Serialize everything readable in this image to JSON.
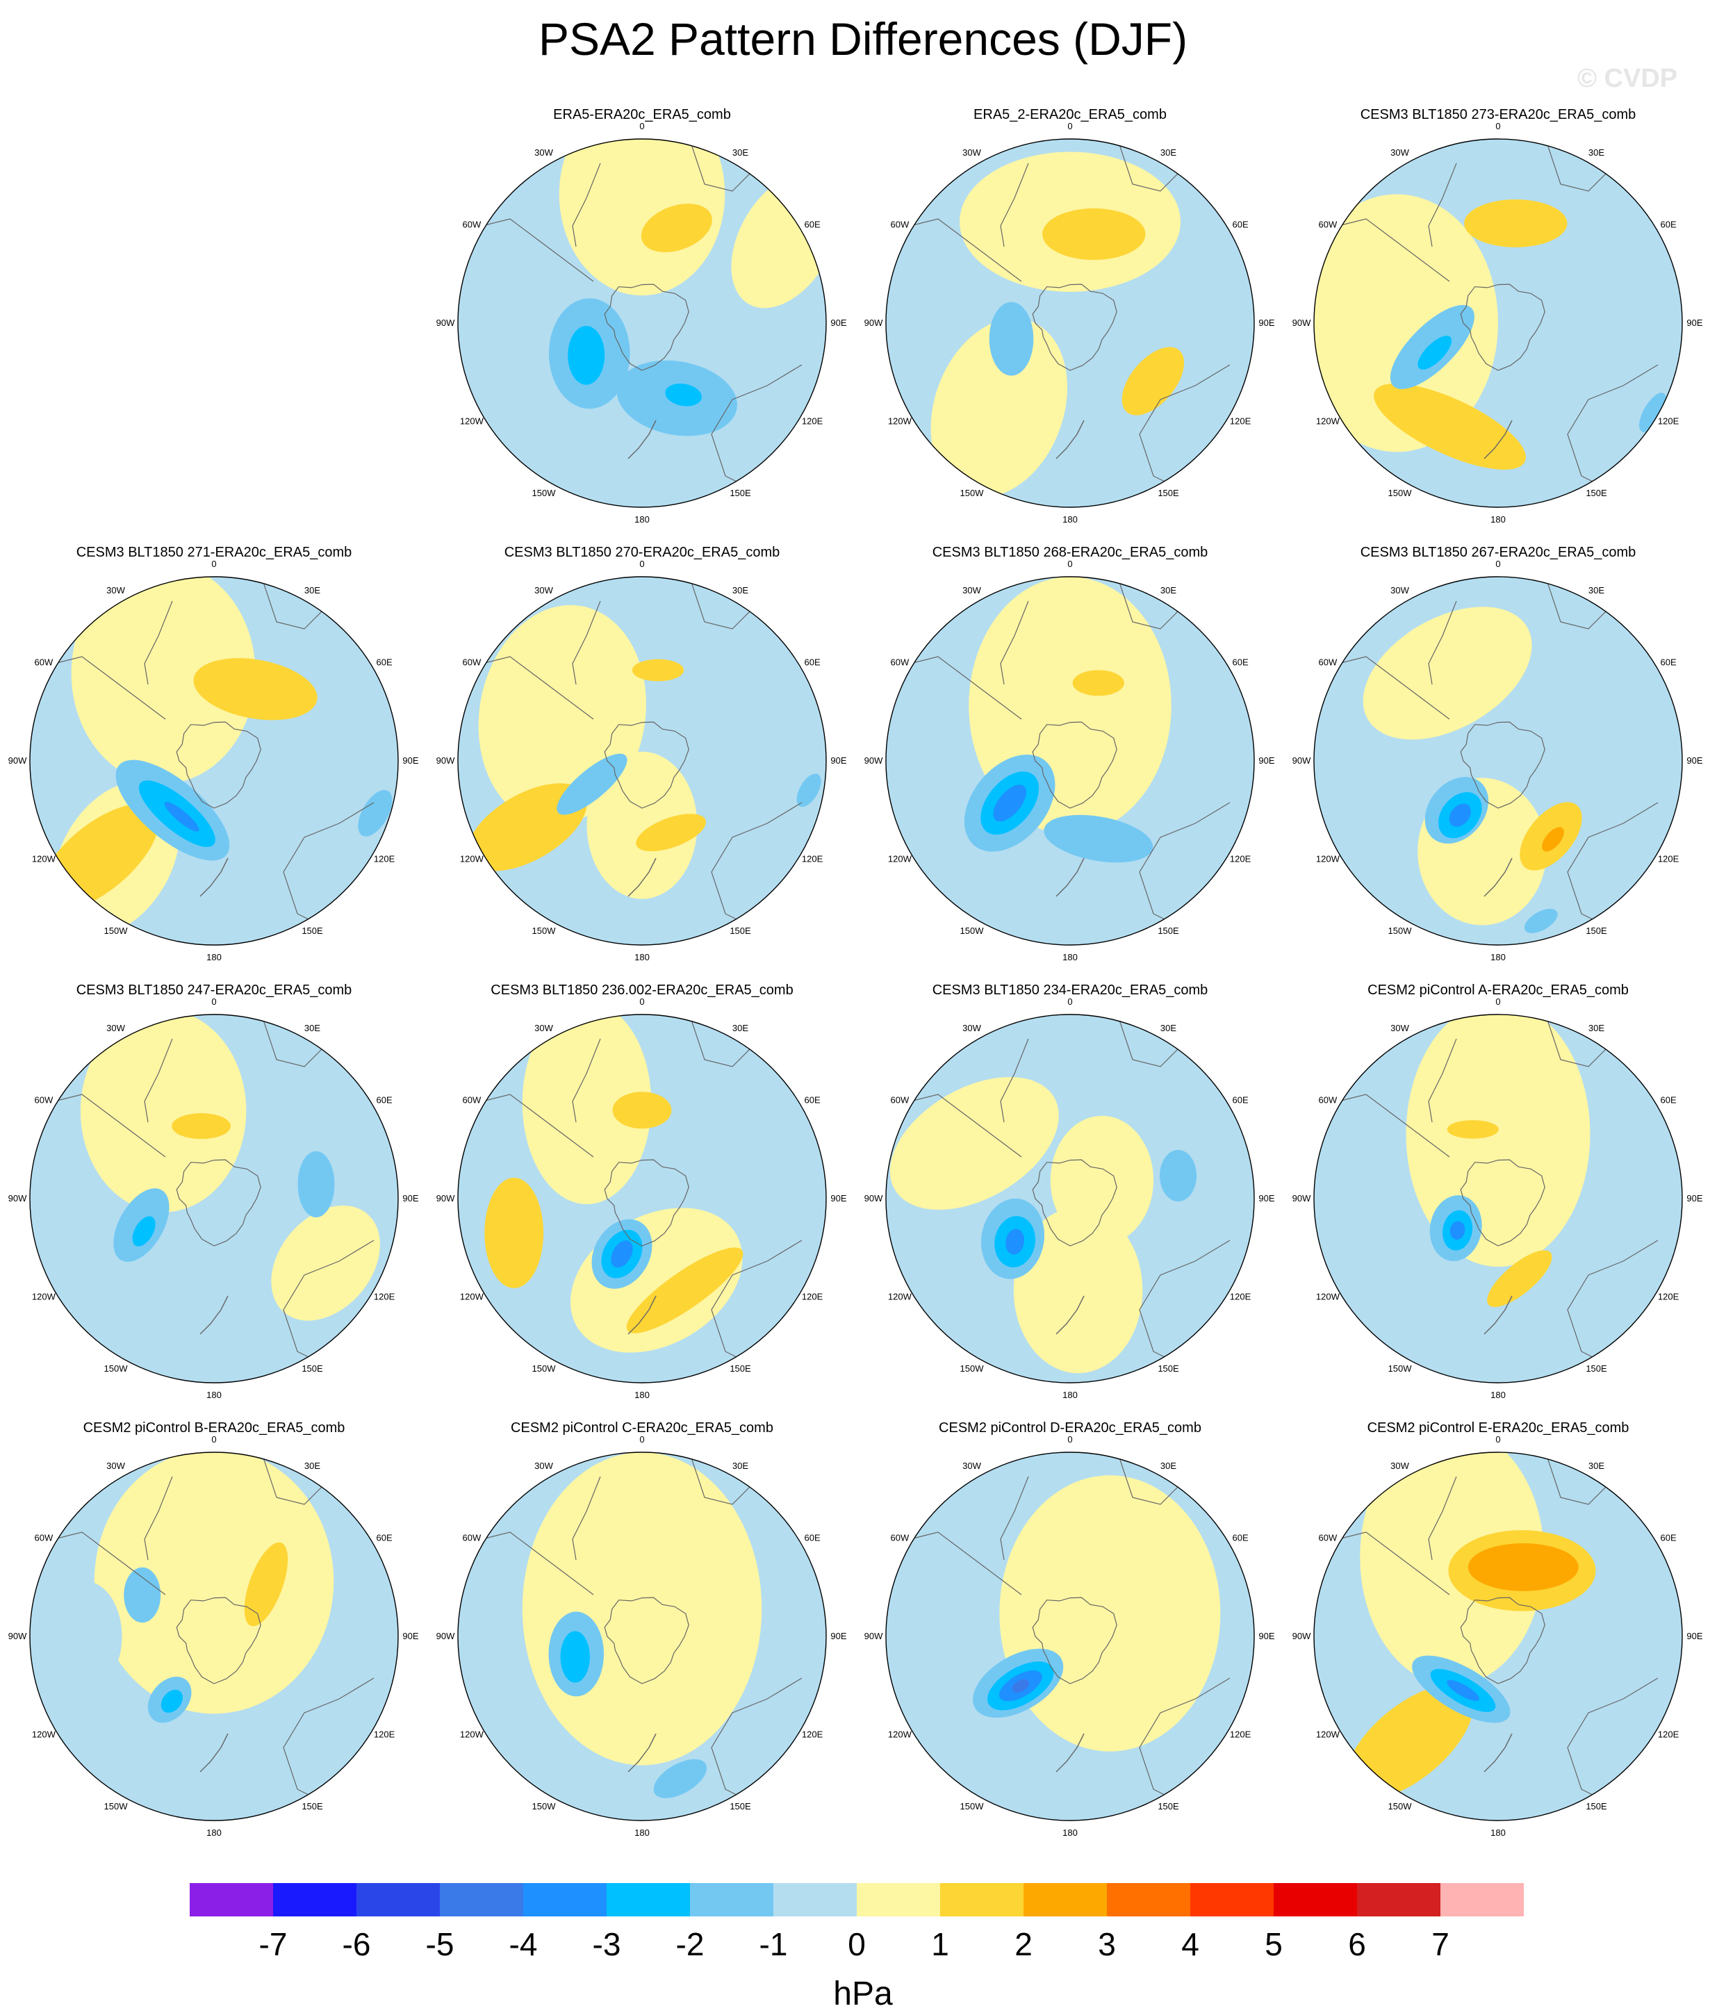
{
  "figure": {
    "title": "PSA2 Pattern Differences (DJF)",
    "watermark": "© CVDP"
  },
  "lon_labels": [
    "0",
    "30E",
    "60E",
    "90E",
    "120E",
    "150E",
    "180",
    "150W",
    "120W",
    "90W",
    "60W",
    "30W"
  ],
  "panels": [
    {
      "title": "ERA5-ERA20c_ERA5_comb",
      "row": 0,
      "col": 1,
      "base": "#b4ddf0",
      "features": [
        {
          "level": 1,
          "lon": 0,
          "r": 0.7,
          "a": 0.45,
          "b": 0.55,
          "rot": 0
        },
        {
          "level": 1,
          "lon": 60,
          "r": 0.9,
          "a": 0.25,
          "b": 0.4,
          "rot": 30
        },
        {
          "level": 2,
          "lon": 20,
          "r": 0.55,
          "a": 0.12,
          "b": 0.2,
          "rot": 70
        },
        {
          "level": -2,
          "lon": 240,
          "r": 0.33,
          "a": 0.22,
          "b": 0.3,
          "rot": 0
        },
        {
          "level": -3,
          "lon": 240,
          "r": 0.35,
          "a": 0.1,
          "b": 0.16,
          "rot": 0
        },
        {
          "level": -2,
          "lon": 155,
          "r": 0.45,
          "a": 0.2,
          "b": 0.33,
          "rot": 100
        },
        {
          "level": -3,
          "lon": 150,
          "r": 0.45,
          "a": 0.06,
          "b": 0.1,
          "rot": 100
        }
      ]
    },
    {
      "title": "ERA5_2-ERA20c_ERA5_comb",
      "row": 0,
      "col": 2,
      "base": "#b4ddf0",
      "features": [
        {
          "level": 1,
          "lon": 0,
          "r": 0.55,
          "a": 0.38,
          "b": 0.6,
          "rot": 90
        },
        {
          "level": 1,
          "lon": 220,
          "r": 0.6,
          "a": 0.35,
          "b": 0.5,
          "rot": 20
        },
        {
          "level": 2,
          "lon": 15,
          "r": 0.5,
          "a": 0.14,
          "b": 0.28,
          "rot": 90
        },
        {
          "level": 2,
          "lon": 125,
          "r": 0.55,
          "a": 0.12,
          "b": 0.22,
          "rot": 40
        },
        {
          "level": -2,
          "lon": 255,
          "r": 0.33,
          "a": 0.12,
          "b": 0.2,
          "rot": 0
        }
      ]
    },
    {
      "title": "CESM3 BLT1850 273-ERA20c_ERA5_comb",
      "row": 0,
      "col": 3,
      "base": "#b4ddf0",
      "features": [
        {
          "level": 1,
          "lon": 270,
          "r": 0.55,
          "a": 0.55,
          "b": 0.7,
          "rot": 0
        },
        {
          "level": 2,
          "lon": 10,
          "r": 0.55,
          "a": 0.13,
          "b": 0.28,
          "rot": 90
        },
        {
          "level": 2,
          "lon": 205,
          "r": 0.62,
          "a": 0.15,
          "b": 0.45,
          "rot": 115
        },
        {
          "level": -2,
          "lon": 250,
          "r": 0.38,
          "a": 0.12,
          "b": 0.3,
          "rot": 45
        },
        {
          "level": -3,
          "lon": 245,
          "r": 0.38,
          "a": 0.05,
          "b": 0.12,
          "rot": 45
        },
        {
          "level": -2,
          "lon": 120,
          "r": 0.97,
          "a": 0.05,
          "b": 0.12,
          "rot": 30
        }
      ]
    },
    {
      "title": "CESM3 BLT1850 271-ERA20c_ERA5_comb",
      "row": 1,
      "col": 0,
      "base": "#b4ddf0",
      "features": [
        {
          "level": 1,
          "lon": 330,
          "r": 0.55,
          "a": 0.5,
          "b": 0.6,
          "rot": 0
        },
        {
          "level": 1,
          "lon": 225,
          "r": 0.75,
          "a": 0.3,
          "b": 0.45,
          "rot": 30
        },
        {
          "level": 2,
          "lon": 30,
          "r": 0.45,
          "a": 0.16,
          "b": 0.34,
          "rot": 100
        },
        {
          "level": 2,
          "lon": 230,
          "r": 0.82,
          "a": 0.18,
          "b": 0.4,
          "rot": 50
        },
        {
          "level": -2,
          "lon": 220,
          "r": 0.35,
          "a": 0.16,
          "b": 0.38,
          "rot": 130
        },
        {
          "level": -3,
          "lon": 215,
          "r": 0.35,
          "a": 0.09,
          "b": 0.26,
          "rot": 130
        },
        {
          "level": -4,
          "lon": 210,
          "r": 0.35,
          "a": 0.03,
          "b": 0.12,
          "rot": 130
        },
        {
          "level": -2,
          "lon": 108,
          "r": 0.92,
          "a": 0.07,
          "b": 0.14,
          "rot": 30
        }
      ]
    },
    {
      "title": "CESM3 BLT1850 270-ERA20c_ERA5_comb",
      "row": 1,
      "col": 1,
      "base": "#b4ddf0",
      "features": [
        {
          "level": 1,
          "lon": 300,
          "r": 0.5,
          "a": 0.45,
          "b": 0.6,
          "rot": 10
        },
        {
          "level": 1,
          "lon": 180,
          "r": 0.35,
          "a": 0.3,
          "b": 0.4,
          "rot": 0
        },
        {
          "level": 2,
          "lon": 10,
          "r": 0.5,
          "a": 0.06,
          "b": 0.14,
          "rot": 90
        },
        {
          "level": 2,
          "lon": 240,
          "r": 0.72,
          "a": 0.18,
          "b": 0.36,
          "rot": 60
        },
        {
          "level": 2,
          "lon": 158,
          "r": 0.42,
          "a": 0.08,
          "b": 0.2,
          "rot": 70
        },
        {
          "level": -2,
          "lon": 245,
          "r": 0.3,
          "a": 0.08,
          "b": 0.24,
          "rot": 50
        },
        {
          "level": -2,
          "lon": 100,
          "r": 0.92,
          "a": 0.05,
          "b": 0.1,
          "rot": 30
        }
      ]
    },
    {
      "title": "CESM3 BLT1850 268-ERA20c_ERA5_comb",
      "row": 1,
      "col": 2,
      "base": "#b4ddf0",
      "features": [
        {
          "level": 1,
          "lon": 0,
          "r": 0.3,
          "a": 0.55,
          "b": 0.7,
          "rot": 0
        },
        {
          "level": 2,
          "lon": 20,
          "r": 0.45,
          "a": 0.07,
          "b": 0.14,
          "rot": 90
        },
        {
          "level": -2,
          "lon": 235,
          "r": 0.4,
          "a": 0.2,
          "b": 0.3,
          "rot": 40
        },
        {
          "level": -2,
          "lon": 160,
          "r": 0.45,
          "a": 0.12,
          "b": 0.3,
          "rot": 100
        },
        {
          "level": -3,
          "lon": 235,
          "r": 0.4,
          "a": 0.12,
          "b": 0.2,
          "rot": 40
        },
        {
          "level": -4,
          "lon": 235,
          "r": 0.4,
          "a": 0.06,
          "b": 0.12,
          "rot": 40
        }
      ]
    },
    {
      "title": "CESM3 BLT1850 267-ERA20c_ERA5_comb",
      "row": 1,
      "col": 3,
      "base": "#b4ddf0",
      "features": [
        {
          "level": 1,
          "lon": 330,
          "r": 0.55,
          "a": 0.3,
          "b": 0.5,
          "rot": 60
        },
        {
          "level": 1,
          "lon": 190,
          "r": 0.5,
          "a": 0.35,
          "b": 0.4,
          "rot": 0
        },
        {
          "level": 2,
          "lon": 145,
          "r": 0.5,
          "a": 0.12,
          "b": 0.22,
          "rot": 40
        },
        {
          "level": 3,
          "lon": 145,
          "r": 0.52,
          "a": 0.04,
          "b": 0.08,
          "rot": 40
        },
        {
          "level": -2,
          "lon": 220,
          "r": 0.35,
          "a": 0.15,
          "b": 0.2,
          "rot": 40
        },
        {
          "level": -3,
          "lon": 215,
          "r": 0.36,
          "a": 0.1,
          "b": 0.14,
          "rot": 40
        },
        {
          "level": -4,
          "lon": 215,
          "r": 0.36,
          "a": 0.05,
          "b": 0.07,
          "rot": 40
        },
        {
          "level": -2,
          "lon": 165,
          "r": 0.9,
          "a": 0.05,
          "b": 0.1,
          "rot": 60
        }
      ]
    },
    {
      "title": "CESM3 BLT1850 247-ERA20c_ERA5_comb",
      "row": 2,
      "col": 0,
      "base": "#b4ddf0",
      "features": [
        {
          "level": 1,
          "lon": 330,
          "r": 0.55,
          "a": 0.45,
          "b": 0.55,
          "rot": 0
        },
        {
          "level": 1,
          "lon": 120,
          "r": 0.7,
          "a": 0.25,
          "b": 0.35,
          "rot": 40
        },
        {
          "level": 2,
          "lon": 350,
          "r": 0.4,
          "a": 0.07,
          "b": 0.16,
          "rot": 90
        },
        {
          "level": -2,
          "lon": 250,
          "r": 0.42,
          "a": 0.12,
          "b": 0.22,
          "rot": 30
        },
        {
          "level": -3,
          "lon": 245,
          "r": 0.42,
          "a": 0.05,
          "b": 0.09,
          "rot": 30
        },
        {
          "level": -2,
          "lon": 82,
          "r": 0.56,
          "a": 0.1,
          "b": 0.18,
          "rot": 0
        }
      ]
    },
    {
      "title": "CESM3 BLT1850 236.002-ERA20c_ERA5_comb",
      "row": 2,
      "col": 1,
      "base": "#b4ddf0",
      "features": [
        {
          "level": 1,
          "lon": 330,
          "r": 0.6,
          "a": 0.35,
          "b": 0.55,
          "rot": 0
        },
        {
          "level": 1,
          "lon": 170,
          "r": 0.45,
          "a": 0.35,
          "b": 0.5,
          "rot": 60
        },
        {
          "level": 2,
          "lon": 0,
          "r": 0.48,
          "a": 0.1,
          "b": 0.16,
          "rot": 90
        },
        {
          "level": 2,
          "lon": 255,
          "r": 0.72,
          "a": 0.16,
          "b": 0.3,
          "rot": 0
        },
        {
          "level": 2,
          "lon": 155,
          "r": 0.55,
          "a": 0.1,
          "b": 0.38,
          "rot": 55
        },
        {
          "level": -2,
          "lon": 200,
          "r": 0.32,
          "a": 0.15,
          "b": 0.2,
          "rot": 30
        },
        {
          "level": -3,
          "lon": 200,
          "r": 0.32,
          "a": 0.1,
          "b": 0.14,
          "rot": 30
        },
        {
          "level": -4,
          "lon": 200,
          "r": 0.32,
          "a": 0.05,
          "b": 0.08,
          "rot": 30
        }
      ]
    },
    {
      "title": "CESM3 BLT1850 234-ERA20c_ERA5_comb",
      "row": 2,
      "col": 2,
      "base": "#b4ddf0",
      "features": [
        {
          "level": 1,
          "lon": 300,
          "r": 0.6,
          "a": 0.3,
          "b": 0.5,
          "rot": 60
        },
        {
          "level": 1,
          "lon": 175,
          "r": 0.5,
          "a": 0.35,
          "b": 0.45,
          "rot": 0
        },
        {
          "level": 1,
          "lon": 60,
          "r": 0.2,
          "a": 0.28,
          "b": 0.35,
          "rot": 0
        },
        {
          "level": -2,
          "lon": 235,
          "r": 0.38,
          "a": 0.17,
          "b": 0.22,
          "rot": 10
        },
        {
          "level": -3,
          "lon": 232,
          "r": 0.38,
          "a": 0.11,
          "b": 0.14,
          "rot": 10
        },
        {
          "level": -4,
          "lon": 232,
          "r": 0.38,
          "a": 0.05,
          "b": 0.07,
          "rot": 10
        },
        {
          "level": -2,
          "lon": 78,
          "r": 0.6,
          "a": 0.1,
          "b": 0.14,
          "rot": 0
        }
      ]
    },
    {
      "title": "CESM2 piControl A-ERA20c_ERA5_comb",
      "row": 2,
      "col": 3,
      "base": "#b4ddf0",
      "features": [
        {
          "level": 1,
          "lon": 0,
          "r": 0.35,
          "a": 0.5,
          "b": 0.72,
          "rot": 0
        },
        {
          "level": 2,
          "lon": 340,
          "r": 0.4,
          "a": 0.05,
          "b": 0.14,
          "rot": 90
        },
        {
          "level": 2,
          "lon": 165,
          "r": 0.45,
          "a": 0.08,
          "b": 0.22,
          "rot": 50
        },
        {
          "level": -2,
          "lon": 235,
          "r": 0.28,
          "a": 0.14,
          "b": 0.18,
          "rot": 10
        },
        {
          "level": -3,
          "lon": 232,
          "r": 0.28,
          "a": 0.08,
          "b": 0.11,
          "rot": 10
        },
        {
          "level": -4,
          "lon": 232,
          "r": 0.28,
          "a": 0.04,
          "b": 0.05,
          "rot": 10
        }
      ]
    },
    {
      "title": "CESM2 piControl B-ERA20c_ERA5_comb",
      "row": 3,
      "col": 0,
      "base": "#b4ddf0",
      "features": [
        {
          "level": 1,
          "lon": 0,
          "r": 0.3,
          "a": 0.65,
          "b": 0.72,
          "rot": 0
        },
        {
          "level": 2,
          "lon": 45,
          "r": 0.4,
          "a": 0.09,
          "b": 0.24,
          "rot": 20
        },
        {
          "level": -1,
          "lon": 270,
          "r": 0.7,
          "a": 0.2,
          "b": 0.3,
          "rot": 0
        },
        {
          "level": -2,
          "lon": 300,
          "r": 0.45,
          "a": 0.1,
          "b": 0.15,
          "rot": 0
        },
        {
          "level": -2,
          "lon": 215,
          "r": 0.42,
          "a": 0.1,
          "b": 0.14,
          "rot": 40
        },
        {
          "level": -3,
          "lon": 213,
          "r": 0.42,
          "a": 0.05,
          "b": 0.07,
          "rot": 40
        }
      ]
    },
    {
      "title": "CESM2 piControl C-ERA20c_ERA5_comb",
      "row": 3,
      "col": 1,
      "base": "#b4ddf0",
      "features": [
        {
          "level": 1,
          "lon": 0,
          "r": 0.15,
          "a": 0.65,
          "b": 0.85,
          "rot": 0
        },
        {
          "level": -2,
          "lon": 255,
          "r": 0.37,
          "a": 0.15,
          "b": 0.23,
          "rot": 0
        },
        {
          "level": -3,
          "lon": 253,
          "r": 0.38,
          "a": 0.08,
          "b": 0.14,
          "rot": 0
        },
        {
          "level": -2,
          "lon": 165,
          "r": 0.8,
          "a": 0.08,
          "b": 0.16,
          "rot": 60
        }
      ]
    },
    {
      "title": "CESM2 piControl D-ERA20c_ERA5_comb",
      "row": 3,
      "col": 2,
      "base": "#b4ddf0",
      "features": [
        {
          "level": 1,
          "lon": 60,
          "r": 0.25,
          "a": 0.6,
          "b": 0.75,
          "rot": 0
        },
        {
          "level": -2,
          "lon": 228,
          "r": 0.38,
          "a": 0.15,
          "b": 0.27,
          "rot": 60
        },
        {
          "level": -3,
          "lon": 225,
          "r": 0.38,
          "a": 0.1,
          "b": 0.2,
          "rot": 60
        },
        {
          "level": -4,
          "lon": 225,
          "r": 0.38,
          "a": 0.06,
          "b": 0.13,
          "rot": 60
        },
        {
          "level": -5,
          "lon": 225,
          "r": 0.38,
          "a": 0.03,
          "b": 0.05,
          "rot": 60
        }
      ]
    },
    {
      "title": "CESM2 piControl E-ERA20c_ERA5_comb",
      "row": 3,
      "col": 3,
      "base": "#b4ddf0",
      "features": [
        {
          "level": 1,
          "lon": 330,
          "r": 0.5,
          "a": 0.5,
          "b": 0.7,
          "rot": 0
        },
        {
          "level": 2,
          "lon": 20,
          "r": 0.38,
          "a": 0.22,
          "b": 0.4,
          "rot": 90
        },
        {
          "level": 3,
          "lon": 20,
          "r": 0.4,
          "a": 0.13,
          "b": 0.3,
          "rot": 90
        },
        {
          "level": 2,
          "lon": 220,
          "r": 0.75,
          "a": 0.2,
          "b": 0.42,
          "rot": 50
        },
        {
          "level": -2,
          "lon": 215,
          "r": 0.35,
          "a": 0.12,
          "b": 0.3,
          "rot": 120
        },
        {
          "level": -3,
          "lon": 213,
          "r": 0.35,
          "a": 0.07,
          "b": 0.2,
          "rot": 120
        },
        {
          "level": -4,
          "lon": 213,
          "r": 0.35,
          "a": 0.03,
          "b": 0.1,
          "rot": 120
        }
      ]
    }
  ],
  "colorbar": {
    "colors": [
      "#8b1fe8",
      "#1a1aff",
      "#2b46e8",
      "#3a7ae8",
      "#1e90ff",
      "#00c0ff",
      "#73c8f2",
      "#b4ddf0",
      "#fdf6a3",
      "#fdd535",
      "#fda800",
      "#ff7000",
      "#ff3800",
      "#e80000",
      "#d42020",
      "#ffb3b3"
    ],
    "ticks": [
      "-7",
      "-6",
      "-5",
      "-4",
      "-3",
      "-2",
      "-1",
      "0",
      "1",
      "2",
      "3",
      "4",
      "5",
      "6",
      "7"
    ],
    "unit": "hPa"
  }
}
